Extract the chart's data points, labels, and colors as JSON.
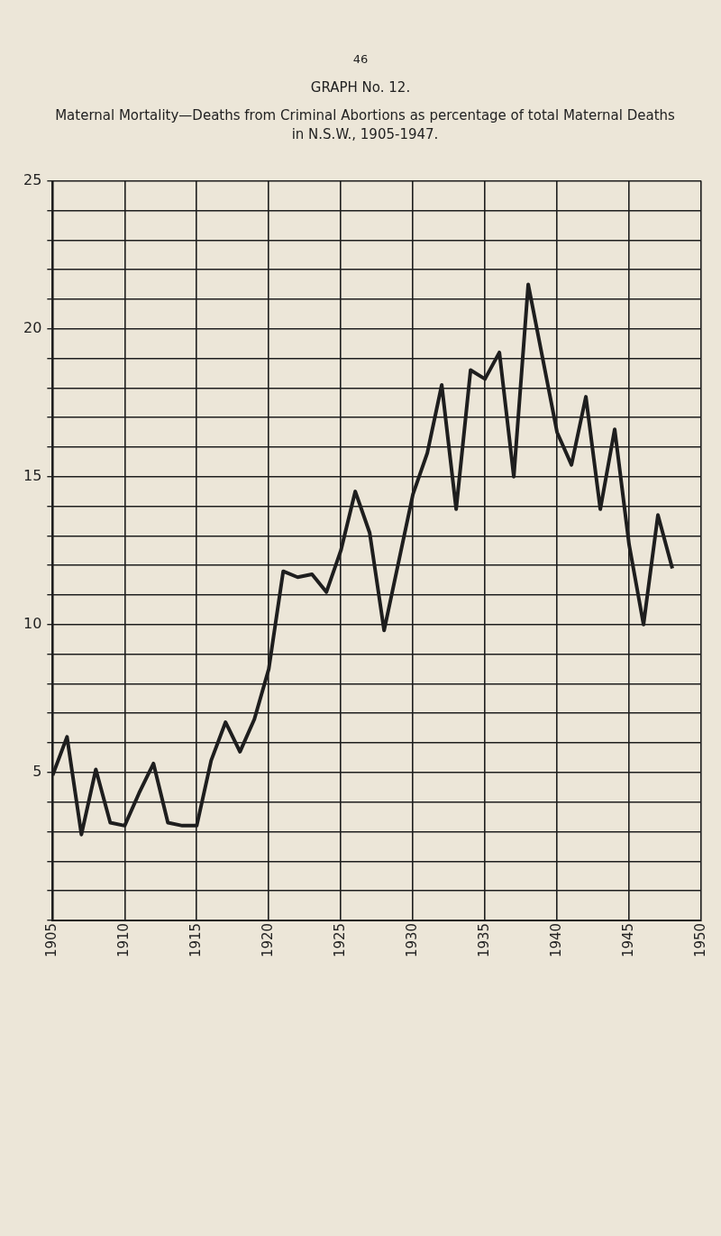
{
  "chart_data": {
    "type": "line",
    "title": "GRAPH No. 12.",
    "subtitle": "Maternal Mortality—Deaths from Criminal Abortions as percentage of total Maternal Deaths in N.S.W., 1905-1947.",
    "annotations": [
      "46"
    ],
    "x": [
      1905,
      1906,
      1907,
      1908,
      1909,
      1910,
      1911,
      1912,
      1913,
      1914,
      1915,
      1916,
      1917,
      1918,
      1919,
      1920,
      1921,
      1922,
      1923,
      1924,
      1925,
      1926,
      1927,
      1928,
      1929,
      1930,
      1931,
      1932,
      1933,
      1934,
      1935,
      1936,
      1937,
      1938,
      1939,
      1940,
      1941,
      1942,
      1943,
      1944,
      1945,
      1946,
      1947,
      1948
    ],
    "series": [
      {
        "color": "#1e1e1e",
        "values": [
          4.9,
          6.2,
          2.9,
          5.1,
          3.3,
          3.2,
          4.3,
          5.3,
          3.3,
          3.2,
          3.2,
          5.4,
          6.7,
          5.7,
          6.8,
          8.5,
          11.8,
          11.6,
          11.7,
          11.1,
          12.5,
          14.5,
          13.1,
          9.8,
          12.1,
          14.4,
          15.8,
          18.1,
          13.9,
          18.6,
          18.3,
          19.2,
          15.0,
          21.5,
          19.0,
          16.5,
          15.4,
          17.7,
          13.9,
          16.6,
          12.7,
          10.0,
          13.7,
          11.9
        ]
      }
    ],
    "xlim": [
      1905,
      1950
    ],
    "xticks": [
      1905,
      1910,
      1915,
      1920,
      1925,
      1930,
      1935,
      1940,
      1945,
      1950
    ],
    "ylim": [
      0,
      25
    ],
    "yticks": [
      {
        "value": 0,
        "label": null
      },
      {
        "value": 1,
        "label": null
      },
      {
        "value": 2,
        "label": null
      },
      {
        "value": 3,
        "label": null
      },
      {
        "value": 4,
        "label": null
      },
      5,
      {
        "value": 6,
        "label": null
      },
      {
        "value": 7,
        "label": null
      },
      {
        "value": 8,
        "label": null
      },
      {
        "value": 9,
        "label": null
      },
      10,
      {
        "value": 11,
        "label": null
      },
      {
        "value": 12,
        "label": null
      },
      {
        "value": 13,
        "label": null
      },
      {
        "value": 14,
        "label": null
      },
      15,
      {
        "value": 16,
        "label": null
      },
      {
        "value": 17,
        "label": null
      },
      {
        "value": 18,
        "label": null
      },
      {
        "value": 19,
        "label": null
      },
      20,
      {
        "value": 21,
        "label": null
      },
      {
        "value": 22,
        "label": null
      },
      {
        "value": 23,
        "label": null
      },
      {
        "value": 24,
        "label": null
      },
      25
    ],
    "grid": true,
    "legend": false,
    "marker": "none",
    "line_style": "solid"
  }
}
